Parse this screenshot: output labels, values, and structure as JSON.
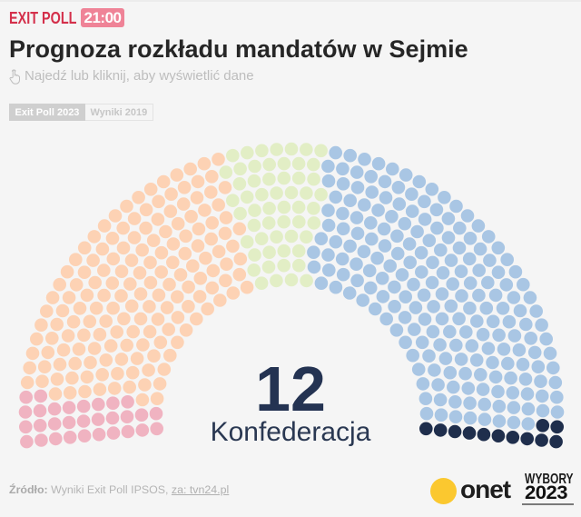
{
  "header": {
    "kicker": "EXIT POLL",
    "time_badge": "21:00",
    "title": "Prognoza rozkładu mandatów w Sejmie",
    "hint": "Najedź lub kliknij, aby wyświetlić dane",
    "hint_icon": "hand-pointer-icon"
  },
  "tabs": [
    {
      "label": "Exit Poll 2023",
      "active": true
    },
    {
      "label": "Wyniki 2019",
      "active": false
    }
  ],
  "highlight": {
    "seats": "12",
    "party": "Konfederacja"
  },
  "footer": {
    "source_label": "Źródło:",
    "source_text": " Wyniki Exit Poll IPSOS, ",
    "source_link": "za: tvn24.pl"
  },
  "logos": {
    "onet": "onet",
    "wybory_top": "WYBORY",
    "wybory_year": "2023"
  },
  "colors": {
    "kicker": "#d4304b",
    "badge_bg": "#ef8397",
    "title": "#262626",
    "highlight_number": "#243352",
    "onet_yellow": "#fbc82f",
    "background": "#f5f5f5"
  },
  "chart_data": {
    "type": "pie",
    "variant": "parliament-hemicycle-dots",
    "title": "Prognoza rozkładu mandatów w Sejmie",
    "total_seats": 460,
    "rows": 10,
    "legend": "none (hover reveals group)",
    "series": [
      {
        "name": null,
        "color_name": "pink",
        "color": "#f0b3c1",
        "seats": 30,
        "highlighted": false
      },
      {
        "name": null,
        "color_name": "peach",
        "color": "#fdd2b4",
        "seats": 163,
        "highlighted": false
      },
      {
        "name": null,
        "color_name": "light-green",
        "color": "#e2eec5",
        "seats": 55,
        "highlighted": false
      },
      {
        "name": null,
        "color_name": "light-blue",
        "color": "#a9c6e4",
        "seats": 200,
        "highlighted": false
      },
      {
        "name": "Konfederacja",
        "color_name": "navy",
        "color": "#1f2e4c",
        "seats": 12,
        "highlighted": true
      }
    ],
    "center_annotation": {
      "value": 12,
      "label": "Konfederacja"
    }
  }
}
